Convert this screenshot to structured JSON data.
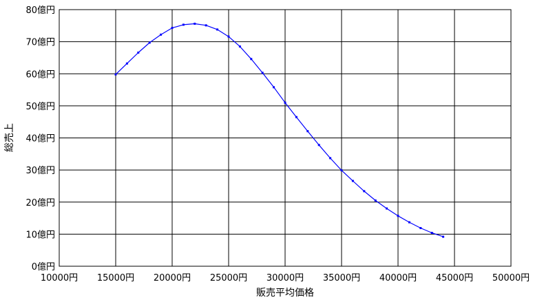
{
  "chart_data": {
    "type": "line",
    "xlabel": "販売平均価格",
    "ylabel": "総売上",
    "xlim": [
      10000,
      50000
    ],
    "ylim": [
      0,
      80
    ],
    "x_ticks": [
      "10000円",
      "15000円",
      "20000円",
      "25000円",
      "30000円",
      "35000円",
      "40000円",
      "45000円",
      "50000円"
    ],
    "y_ticks": [
      "0億円",
      "10億円",
      "20億円",
      "30億円",
      "40億円",
      "50億円",
      "60億円",
      "70億円",
      "80億円"
    ],
    "grid": true,
    "legend": "none",
    "series": [
      {
        "color": "#0000ff",
        "x": [
          15000,
          16000,
          17000,
          18000,
          19000,
          20000,
          21000,
          22000,
          23000,
          24000,
          25000,
          26000,
          27000,
          28000,
          29000,
          30000,
          31000,
          32000,
          33000,
          34000,
          35000,
          36000,
          37000,
          38000,
          39000,
          40000,
          41000,
          42000,
          43000,
          44000
        ],
        "y": [
          59.8,
          63.2,
          66.6,
          69.7,
          72.2,
          74.3,
          75.3,
          75.6,
          75.1,
          73.8,
          71.6,
          68.5,
          64.6,
          60.3,
          55.8,
          51.0,
          46.5,
          42.1,
          37.8,
          33.7,
          29.9,
          26.6,
          23.4,
          20.5,
          18.0,
          15.7,
          13.7,
          11.9,
          10.4,
          9.2
        ]
      }
    ]
  }
}
